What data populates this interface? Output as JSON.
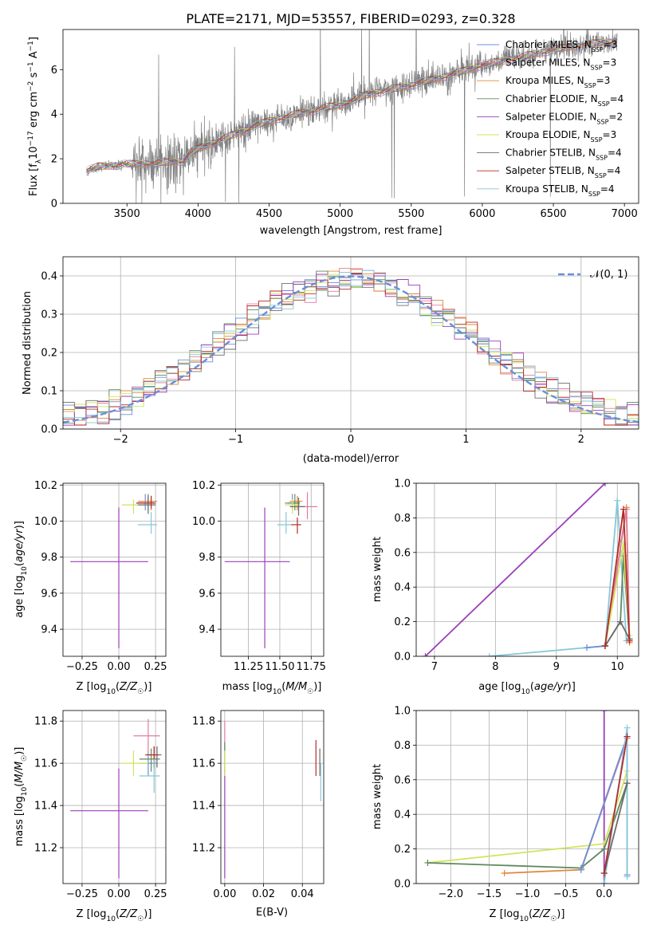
{
  "figure_title": "PLATE=2171, MJD=53557, FIBERID=0293, z=0.328",
  "colors": {
    "Chabrier MILES": "#6a8fd8",
    "Salpeter MILES": "#e27d9c",
    "Kroupa MILES": "#e0883c",
    "Chabrier ELODIE": "#5e8a5e",
    "Salpeter ELODIE": "#9b3fb8",
    "Kroupa ELODIE": "#d2e35a",
    "Chabrier STELIB": "#6b6b6b",
    "Salpeter STELIB": "#b32b2b",
    "Kroupa STELIB": "#86c7d8",
    "gauss": "#6a8fd8"
  },
  "chart_data": [
    {
      "id": "spectrum",
      "type": "line",
      "title": "PLATE=2171, MJD=53557, FIBERID=0293, z=0.328",
      "xlabel": "wavelength [Angstrom, rest frame]",
      "ylabel": "Flux [f_λ 10^-17 erg cm^-2 s^-1 A^-1]",
      "xlim": [
        3050,
        7100
      ],
      "ylim": [
        0,
        7.8
      ],
      "xticks": [
        3500,
        4000,
        4500,
        5000,
        5500,
        6000,
        6500,
        7000
      ],
      "yticks": [
        0,
        2,
        4,
        6
      ],
      "grid": false,
      "legend": "top-right",
      "continuum_x": [
        3215,
        3300,
        3500,
        3700,
        3900,
        3950,
        4100,
        4300,
        4500,
        4700,
        4900,
        5000,
        5200,
        5500,
        5800,
        6000,
        6300,
        6500,
        6700,
        6950
      ],
      "continuum_y": [
        1.45,
        1.65,
        1.75,
        1.8,
        1.9,
        2.3,
        2.7,
        3.2,
        3.7,
        4.0,
        4.3,
        4.4,
        4.9,
        5.3,
        5.8,
        6.2,
        6.6,
        6.9,
        7.1,
        7.3
      ],
      "series": [
        {
          "name": "Chabrier MILES, N_SSP=3"
        },
        {
          "name": "Salpeter MILES, N_SSP=3"
        },
        {
          "name": "Kroupa MILES, N_SSP=3"
        },
        {
          "name": "Chabrier ELODIE, N_SSP=4"
        },
        {
          "name": "Salpeter ELODIE, N_SSP=2"
        },
        {
          "name": "Kroupa ELODIE, N_SSP=3"
        },
        {
          "name": "Chabrier STELIB, N_SSP=4"
        },
        {
          "name": "Salpeter STELIB, N_SSP=4"
        },
        {
          "name": "Kroupa STELIB, N_SSP=4"
        }
      ]
    },
    {
      "id": "residuals",
      "type": "line",
      "xlabel": "(data-model)/error",
      "ylabel": "Normed distribution",
      "xlim": [
        -2.5,
        2.5
      ],
      "ylim": [
        0,
        0.45
      ],
      "xticks": [
        -2,
        -1,
        0,
        1,
        2
      ],
      "yticks": [
        0.0,
        0.1,
        0.2,
        0.3,
        0.4
      ],
      "grid": true,
      "legend": "top-right",
      "gauss_label": "𝒩(0, 1)",
      "bin_width": 0.1
    },
    {
      "id": "age-vs-Z",
      "type": "scatter",
      "xlabel": "Z [log10(Z/Z☉)]",
      "ylabel": "age  [log10(age/yr)]",
      "xlim": [
        -0.38,
        0.32
      ],
      "ylim": [
        9.25,
        10.21
      ],
      "xticks": [
        -0.25,
        0.0,
        0.25
      ],
      "xtick_labels": [
        "−0.25",
        "0.00",
        "0.25"
      ],
      "yticks": [
        9.4,
        9.6,
        9.8,
        10.0,
        10.2
      ],
      "grid": true,
      "points": [
        {
          "m": "Salpeter ELODIE",
          "x": 0.0,
          "y": 9.775,
          "xerr": [
            0.33,
            0.2
          ],
          "yerr": [
            0.48,
            0.3
          ]
        },
        {
          "m": "Chabrier MILES",
          "x": 0.18,
          "y": 10.1,
          "xerr": [
            0.06,
            0.06
          ],
          "yerr": [
            0.04,
            0.05
          ]
        },
        {
          "m": "Salpeter MILES",
          "x": 0.2,
          "y": 10.11,
          "xerr": [
            0.07,
            0.04
          ],
          "yerr": [
            0.05,
            0.02
          ]
        },
        {
          "m": "Kroupa MILES",
          "x": 0.22,
          "y": 10.11,
          "xerr": [
            0.08,
            0.04
          ],
          "yerr": [
            0.05,
            0.03
          ]
        },
        {
          "m": "Chabrier ELODIE",
          "x": 0.2,
          "y": 10.1,
          "xerr": [
            0.08,
            0.04
          ],
          "yerr": [
            0.04,
            0.05
          ]
        },
        {
          "m": "Kroupa ELODIE",
          "x": 0.1,
          "y": 10.09,
          "xerr": [
            0.08,
            0.08
          ],
          "yerr": [
            0.05,
            0.03
          ]
        },
        {
          "m": "Chabrier STELIB",
          "x": 0.2,
          "y": 10.09,
          "xerr": [
            0.07,
            0.05
          ],
          "yerr": [
            0.05,
            0.05
          ]
        },
        {
          "m": "Salpeter STELIB",
          "x": 0.22,
          "y": 10.1,
          "xerr": [
            0.1,
            0.03
          ],
          "yerr": [
            0.03,
            0.04
          ]
        },
        {
          "m": "Kroupa STELIB",
          "x": 0.22,
          "y": 9.98,
          "xerr": [
            0.09,
            0.04
          ],
          "yerr": [
            0.05,
            0.07
          ]
        }
      ]
    },
    {
      "id": "age-vs-mass",
      "type": "scatter",
      "xlabel": "mass [log10(M/M☉)]",
      "ylabel": "",
      "xlim": [
        11.03,
        11.85
      ],
      "ylim": [
        9.25,
        10.21
      ],
      "xticks": [
        11.25,
        11.5,
        11.75
      ],
      "xtick_labels": [
        "11.25",
        "11.50",
        "11.75"
      ],
      "yticks": [
        9.4,
        9.6,
        9.8,
        10.0,
        10.2
      ],
      "grid": true,
      "points": [
        {
          "m": "Salpeter ELODIE",
          "x": 11.38,
          "y": 9.775,
          "xerr": [
            0.32,
            0.2
          ],
          "yerr": [
            0.48,
            0.3
          ]
        },
        {
          "m": "Chabrier MILES",
          "x": 11.6,
          "y": 10.1,
          "xerr": [
            0.06,
            0.06
          ],
          "yerr": [
            0.04,
            0.05
          ]
        },
        {
          "m": "Salpeter MILES",
          "x": 11.72,
          "y": 10.08,
          "xerr": [
            0.08,
            0.08
          ],
          "yerr": [
            0.07,
            0.08
          ]
        },
        {
          "m": "Kroupa MILES",
          "x": 11.64,
          "y": 10.11,
          "xerr": [
            0.06,
            0.04
          ],
          "yerr": [
            0.05,
            0.03
          ]
        },
        {
          "m": "Chabrier ELODIE",
          "x": 11.62,
          "y": 10.1,
          "xerr": [
            0.06,
            0.04
          ],
          "yerr": [
            0.04,
            0.05
          ]
        },
        {
          "m": "Kroupa ELODIE",
          "x": 11.6,
          "y": 10.09,
          "xerr": [
            0.06,
            0.06
          ],
          "yerr": [
            0.05,
            0.03
          ]
        },
        {
          "m": "Chabrier STELIB",
          "x": 11.65,
          "y": 10.08,
          "xerr": [
            0.07,
            0.05
          ],
          "yerr": [
            0.05,
            0.05
          ]
        },
        {
          "m": "Salpeter STELIB",
          "x": 11.64,
          "y": 9.98,
          "xerr": [
            0.05,
            0.03
          ],
          "yerr": [
            0.05,
            0.04
          ]
        },
        {
          "m": "Kroupa STELIB",
          "x": 11.55,
          "y": 9.98,
          "xerr": [
            0.07,
            0.04
          ],
          "yerr": [
            0.05,
            0.07
          ]
        }
      ]
    },
    {
      "id": "weight-vs-age",
      "type": "line",
      "xlabel": "age  [log10(age/yr)]",
      "ylabel": "mass weight",
      "xlim": [
        6.7,
        10.35
      ],
      "ylim": [
        0,
        1
      ],
      "xticks": [
        7,
        8,
        9,
        10
      ],
      "yticks": [
        0.0,
        0.2,
        0.4,
        0.6,
        0.8,
        1.0
      ],
      "grid": true,
      "series": [
        {
          "m": "Salpeter ELODIE",
          "x": [
            6.85,
            9.8
          ],
          "y": [
            0.0,
            1.0
          ]
        },
        {
          "m": "Kroupa STELIB",
          "x": [
            7.9,
            9.5,
            9.8,
            10.0,
            10.15
          ],
          "y": [
            0.0,
            0.05,
            0.06,
            0.9,
            0.09
          ]
        },
        {
          "m": "Chabrier MILES",
          "x": [
            9.5,
            9.8,
            10.15
          ],
          "y": [
            0.05,
            0.06,
            0.85
          ]
        },
        {
          "m": "Kroupa MILES",
          "x": [
            9.8,
            10.15,
            10.2
          ],
          "y": [
            0.06,
            0.86,
            0.08
          ]
        },
        {
          "m": "Salpeter MILES",
          "x": [
            9.8,
            10.15,
            10.2
          ],
          "y": [
            0.06,
            0.85,
            0.09
          ]
        },
        {
          "m": "Chabrier ELODIE",
          "x": [
            9.8,
            10.05,
            10.1,
            10.2
          ],
          "y": [
            0.06,
            0.2,
            0.58,
            0.1
          ]
        },
        {
          "m": "Kroupa ELODIE",
          "x": [
            9.8,
            10.1,
            10.2
          ],
          "y": [
            0.06,
            0.65,
            0.12
          ]
        },
        {
          "m": "Chabrier STELIB",
          "x": [
            9.8,
            10.05,
            10.2
          ],
          "y": [
            0.06,
            0.2,
            0.1
          ]
        },
        {
          "m": "Salpeter STELIB",
          "x": [
            9.8,
            10.1,
            10.2
          ],
          "y": [
            0.06,
            0.85,
            0.09
          ]
        }
      ]
    },
    {
      "id": "mass-vs-Z",
      "type": "scatter",
      "xlabel": "Z [log10(Z/Z☉)]",
      "ylabel": "mass [log10(M/M☉)]",
      "xlim": [
        -0.38,
        0.32
      ],
      "ylim": [
        11.03,
        11.85
      ],
      "xticks": [
        -0.25,
        0.0,
        0.25
      ],
      "xtick_labels": [
        "−0.25",
        "0.00",
        "0.25"
      ],
      "yticks": [
        11.2,
        11.4,
        11.6,
        11.8
      ],
      "grid": true,
      "points": [
        {
          "m": "Salpeter ELODIE",
          "x": 0.0,
          "y": 11.375,
          "xerr": [
            0.33,
            0.2
          ],
          "yerr": [
            0.32,
            0.2
          ]
        },
        {
          "m": "Chabrier MILES",
          "x": 0.2,
          "y": 11.6,
          "xerr": [
            0.06,
            0.06
          ],
          "yerr": [
            0.06,
            0.06
          ]
        },
        {
          "m": "Salpeter MILES",
          "x": 0.2,
          "y": 11.73,
          "xerr": [
            0.1,
            0.08
          ],
          "yerr": [
            0.08,
            0.08
          ]
        },
        {
          "m": "Kroupa MILES",
          "x": 0.24,
          "y": 11.64,
          "xerr": [
            0.06,
            0.04
          ],
          "yerr": [
            0.06,
            0.04
          ]
        },
        {
          "m": "Chabrier ELODIE",
          "x": 0.22,
          "y": 11.62,
          "xerr": [
            0.08,
            0.06
          ],
          "yerr": [
            0.06,
            0.05
          ]
        },
        {
          "m": "Kroupa ELODIE",
          "x": 0.1,
          "y": 11.6,
          "xerr": [
            0.08,
            0.1
          ],
          "yerr": [
            0.06,
            0.06
          ]
        },
        {
          "m": "Chabrier STELIB",
          "x": 0.26,
          "y": 11.64,
          "xerr": [
            0.06,
            0.03
          ],
          "yerr": [
            0.06,
            0.04
          ]
        },
        {
          "m": "Salpeter STELIB",
          "x": 0.24,
          "y": 11.64,
          "xerr": [
            0.06,
            0.03
          ],
          "yerr": [
            0.06,
            0.04
          ]
        },
        {
          "m": "Kroupa STELIB",
          "x": 0.24,
          "y": 11.54,
          "xerr": [
            0.1,
            0.04
          ],
          "yerr": [
            0.08,
            0.08
          ]
        }
      ]
    },
    {
      "id": "mass-vs-ebv",
      "type": "scatter",
      "xlabel": "E(B-V)",
      "ylabel": "",
      "xlim": [
        -0.002,
        0.051
      ],
      "ylim": [
        11.03,
        11.85
      ],
      "xticks": [
        0.0,
        0.02,
        0.04
      ],
      "xtick_labels": [
        "0.00",
        "0.02",
        "0.04"
      ],
      "yticks": [
        11.2,
        11.4,
        11.6,
        11.8
      ],
      "grid": true,
      "points": [
        {
          "m": "Salpeter ELODIE",
          "x": 0.0,
          "y": 11.375,
          "xerr": [
            0,
            0
          ],
          "yerr": [
            0.32,
            0.2
          ]
        },
        {
          "m": "Salpeter MILES",
          "x": 0.0,
          "y": 11.72,
          "xerr": [
            0,
            0
          ],
          "yerr": [
            0.08,
            0.08
          ]
        },
        {
          "m": "Chabrier ELODIE",
          "x": 0.0,
          "y": 11.62,
          "xerr": [
            0,
            0
          ],
          "yerr": [
            0.06,
            0.08
          ]
        },
        {
          "m": "Kroupa ELODIE",
          "x": 0.0,
          "y": 11.6,
          "xerr": [
            0,
            0
          ],
          "yerr": [
            0.06,
            0.06
          ]
        },
        {
          "m": "Salpeter STELIB",
          "x": 0.047,
          "y": 11.63,
          "xerr": [
            0,
            0
          ],
          "yerr": [
            0.09,
            0.08
          ]
        },
        {
          "m": "Chabrier STELIB",
          "x": 0.049,
          "y": 11.6,
          "xerr": [
            0,
            0
          ],
          "yerr": [
            0.06,
            0.07
          ]
        },
        {
          "m": "Kroupa STELIB",
          "x": 0.0495,
          "y": 11.54,
          "xerr": [
            0,
            0
          ],
          "yerr": [
            0.12,
            0.06
          ]
        }
      ]
    },
    {
      "id": "weight-vs-Z",
      "type": "line",
      "xlabel": "Z [log10(Z/Z☉)]",
      "ylabel": "mass weight",
      "xlim": [
        -2.45,
        0.45
      ],
      "ylim": [
        0,
        1
      ],
      "xticks": [
        -2.0,
        -1.5,
        -1.0,
        -0.5,
        0.0
      ],
      "xtick_labels": [
        "−2.0",
        "−1.5",
        "−1.0",
        "−0.5",
        "0.0"
      ],
      "yticks": [
        0.0,
        0.2,
        0.4,
        0.6,
        0.8,
        1.0
      ],
      "grid": true,
      "series": [
        {
          "m": "Salpeter ELODIE",
          "x": [
            0.0,
            0.0
          ],
          "y": [
            0.0,
            1.0
          ]
        },
        {
          "m": "Kroupa ELODIE",
          "x": [
            -2.3,
            0.0,
            0.3
          ],
          "y": [
            0.12,
            0.23,
            0.65
          ]
        },
        {
          "m": "Chabrier ELODIE",
          "x": [
            -2.3,
            -0.3,
            0.0,
            0.3
          ],
          "y": [
            0.12,
            0.09,
            0.2,
            0.58
          ]
        },
        {
          "m": "Kroupa MILES",
          "x": [
            -1.3,
            -0.3,
            0.3
          ],
          "y": [
            0.06,
            0.08,
            0.85
          ]
        },
        {
          "m": "Salpeter MILES",
          "x": [
            -0.3,
            0.3
          ],
          "y": [
            0.08,
            0.84
          ]
        },
        {
          "m": "Chabrier MILES",
          "x": [
            -0.3,
            0.3,
            0.3
          ],
          "y": [
            0.08,
            0.85,
            0.05
          ]
        },
        {
          "m": "Kroupa STELIB",
          "x": [
            0.0,
            0.3,
            0.3
          ],
          "y": [
            0.0,
            0.9,
            0.04
          ]
        },
        {
          "m": "Chabrier STELIB",
          "x": [
            0.0,
            0.3
          ],
          "y": [
            0.06,
            0.58
          ]
        },
        {
          "m": "Salpeter STELIB",
          "x": [
            0.0,
            0.3
          ],
          "y": [
            0.06,
            0.85
          ]
        }
      ]
    }
  ]
}
